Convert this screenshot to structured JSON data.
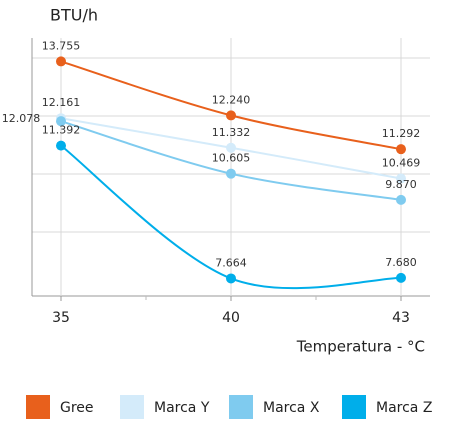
{
  "chart_data": {
    "type": "line",
    "y_label": "BTU/h",
    "x_label": "Temperatura - °C",
    "categories": [
      "35",
      "40",
      "43"
    ],
    "ylim": [
      7.2,
      14.3
    ],
    "series": [
      {
        "name": "Gree",
        "color": "#e8601c",
        "values": [
          13.755,
          12.24,
          11.292
        ],
        "value_labels": [
          "13.755",
          "12.240",
          "11.292"
        ]
      },
      {
        "name": "Marca Y",
        "color": "#d4ebfa",
        "values": [
          12.161,
          11.332,
          10.469
        ],
        "value_labels": [
          "12.161",
          "11.332",
          "10.469"
        ]
      },
      {
        "name": "Marca X",
        "color": "#7fcbef",
        "values": [
          12.078,
          10.605,
          9.87
        ],
        "value_labels": [
          "12.078",
          "10.605",
          "9.870"
        ]
      },
      {
        "name": "Marca Z",
        "color": "#00aeea",
        "values": [
          11.392,
          7.664,
          7.68
        ],
        "value_labels": [
          "11.392",
          "7.664",
          "7.680"
        ]
      }
    ]
  }
}
